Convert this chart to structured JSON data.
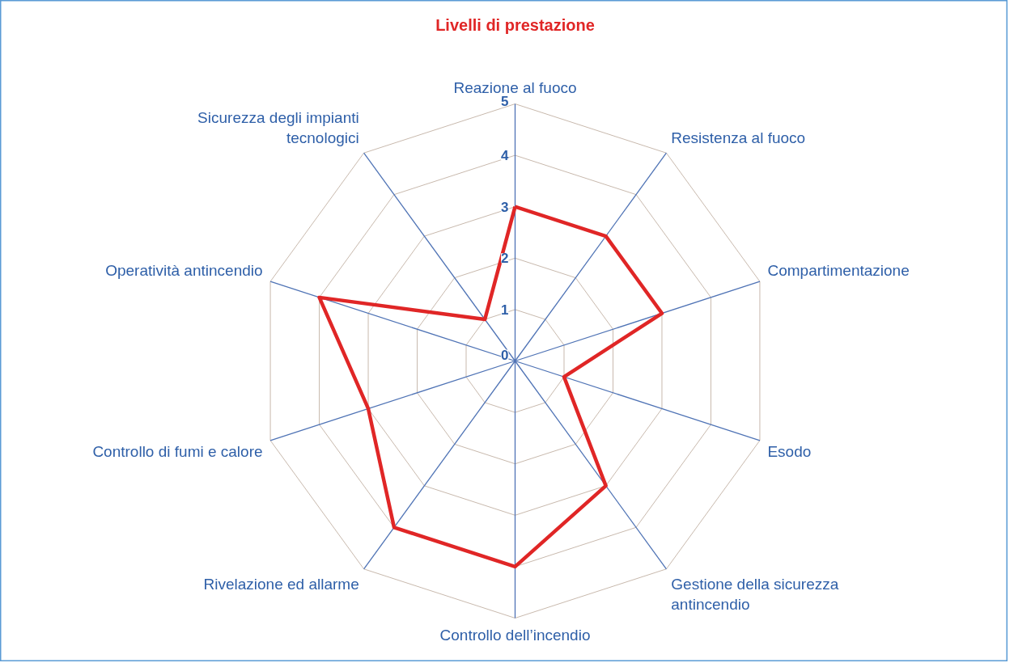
{
  "chart_data": {
    "type": "radar",
    "title": "Livelli di prestazione",
    "categories": [
      "Reazione al fuoco",
      "Resistenza al fuoco",
      "Compartimentazione",
      "Esodo",
      "Gestione della sicurezza antincendio",
      "Controllo dell’incendio",
      "Rivelazione ed allarme",
      "Controllo di fumi e calore",
      "Operatività antincendio",
      "Sicurezza degli impianti tecnologici"
    ],
    "series": [
      {
        "color": "#e02626",
        "values": [
          3,
          3,
          3,
          1,
          3,
          4,
          4,
          3,
          4,
          1
        ]
      }
    ],
    "ylim": [
      0,
      5
    ],
    "yticks": [
      0,
      1,
      2,
      3,
      4,
      5
    ],
    "grid": true,
    "marker": "none",
    "line_style": "solid"
  }
}
